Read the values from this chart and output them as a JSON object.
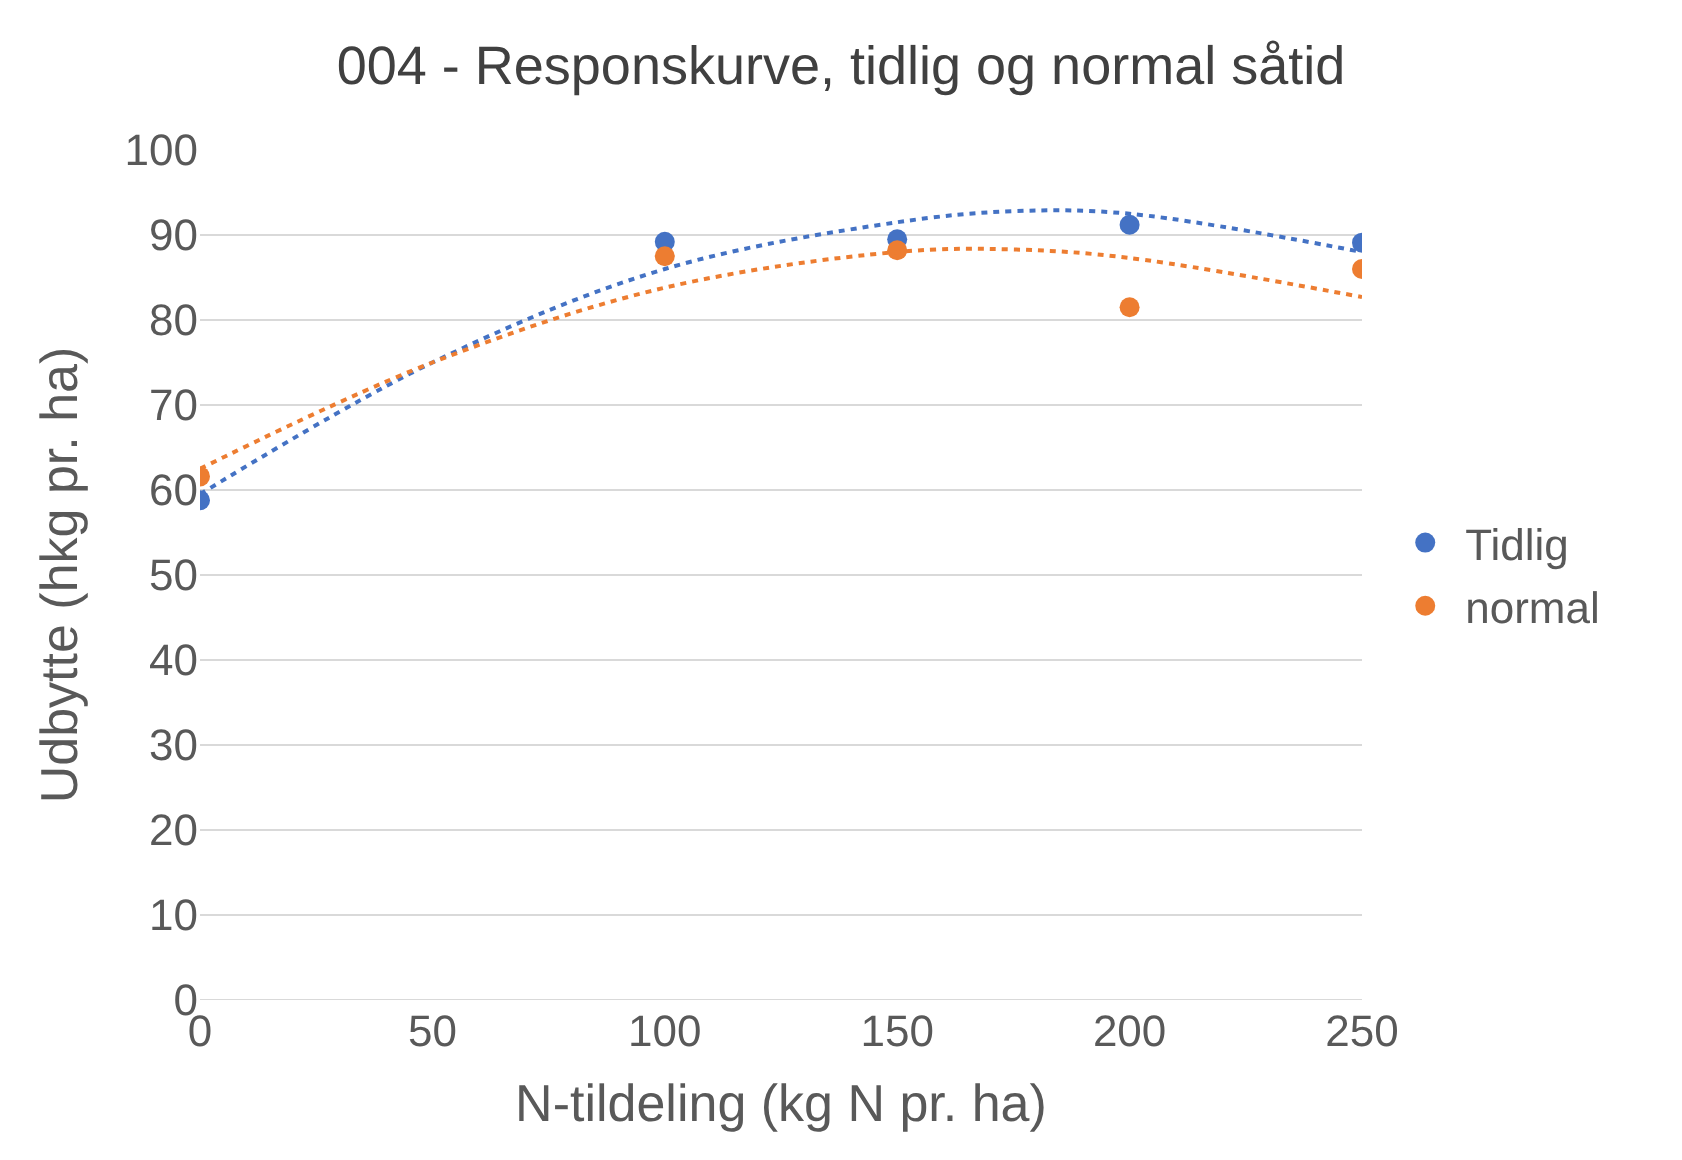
{
  "chart_data": {
    "type": "scatter",
    "title": "004 - Responskurve, tidlig og normal såtid",
    "xlabel": "N-tildeling (kg N pr. ha)",
    "ylabel": "Udbytte (hkg pr. ha)",
    "x": [
      0,
      100,
      150,
      200,
      250
    ],
    "series": [
      {
        "name": "Tidlig",
        "color": "#4472c4",
        "values": [
          58.8,
          89.2,
          89.5,
          91.2,
          89.1
        ]
      },
      {
        "name": "normal",
        "color": "#ed7d31",
        "values": [
          61.6,
          87.5,
          88.2,
          81.5,
          86.0
        ]
      },
      {
        "type": "line",
        "color": "#4472c4",
        "line_style": "dotted",
        "marker": "none",
        "x": [
          0,
          50,
          100,
          150,
          175,
          200,
          250
        ],
        "values": [
          59.5,
          75.0,
          86.0,
          91.5,
          92.8,
          92.5,
          88.0
        ]
      },
      {
        "type": "line",
        "color": "#ed7d31",
        "line_style": "dotted",
        "marker": "none",
        "x": [
          0,
          50,
          100,
          150,
          175,
          200,
          250
        ],
        "values": [
          62.5,
          75.0,
          83.8,
          88.0,
          88.3,
          87.3,
          82.7
        ]
      }
    ],
    "xlim": [
      0,
      250
    ],
    "xticks": [
      0,
      50,
      100,
      150,
      200,
      250
    ],
    "ylim": [
      0,
      100
    ],
    "yticks": [
      0,
      10,
      20,
      30,
      40,
      50,
      60,
      70,
      80,
      90,
      100
    ],
    "grid": "y",
    "legend": "right",
    "marker": "circle"
  }
}
